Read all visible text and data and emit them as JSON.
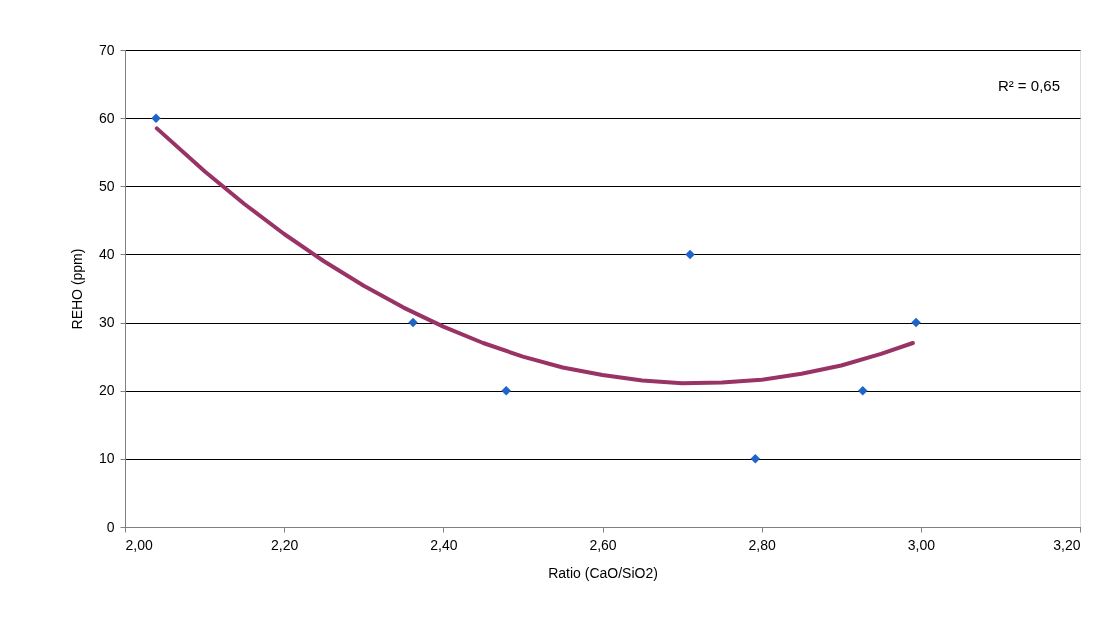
{
  "chart_data": {
    "type": "scatter",
    "xlabel": "Ratio (CaO/SiO2)",
    "ylabel": "REHO (ppm)",
    "annotations": [
      "R² = 0,65"
    ],
    "xlim": [
      2.0,
      3.2
    ],
    "xticks": [
      {
        "value": 2.0,
        "label": "2,00"
      },
      {
        "value": 2.2,
        "label": "2,20"
      },
      {
        "value": 2.4,
        "label": "2,40"
      },
      {
        "value": 2.6,
        "label": "2,60"
      },
      {
        "value": 2.8,
        "label": "2,80"
      },
      {
        "value": 3.0,
        "label": "3,00"
      },
      {
        "value": 3.2,
        "label": "3,20"
      }
    ],
    "ylim": [
      0,
      70
    ],
    "yticks": [
      0,
      10,
      20,
      30,
      40,
      50,
      60,
      70
    ],
    "grid": "y",
    "legend": false,
    "series": [
      {
        "type": "scatter",
        "marker": "diamond",
        "color": "#1f64c8",
        "x": [
          2.039,
          2.362,
          2.479,
          2.71,
          2.792,
          2.927,
          2.994
        ],
        "values": [
          60,
          30,
          20,
          40,
          10,
          20,
          30
        ]
      },
      {
        "type": "line",
        "marker": "none",
        "line_style": "solid",
        "color": "#993366",
        "x": [
          2.04,
          2.1,
          2.15,
          2.2,
          2.25,
          2.3,
          2.35,
          2.4,
          2.45,
          2.5,
          2.55,
          2.6,
          2.65,
          2.7,
          2.75,
          2.8,
          2.85,
          2.9,
          2.95,
          2.99
        ],
        "values": [
          58.5,
          52.2,
          47.4,
          43.0,
          39.0,
          35.4,
          32.2,
          29.4,
          27.0,
          25.0,
          23.4,
          22.3,
          21.5,
          21.1,
          21.2,
          21.6,
          22.5,
          23.7,
          25.4,
          27.0
        ]
      }
    ]
  }
}
